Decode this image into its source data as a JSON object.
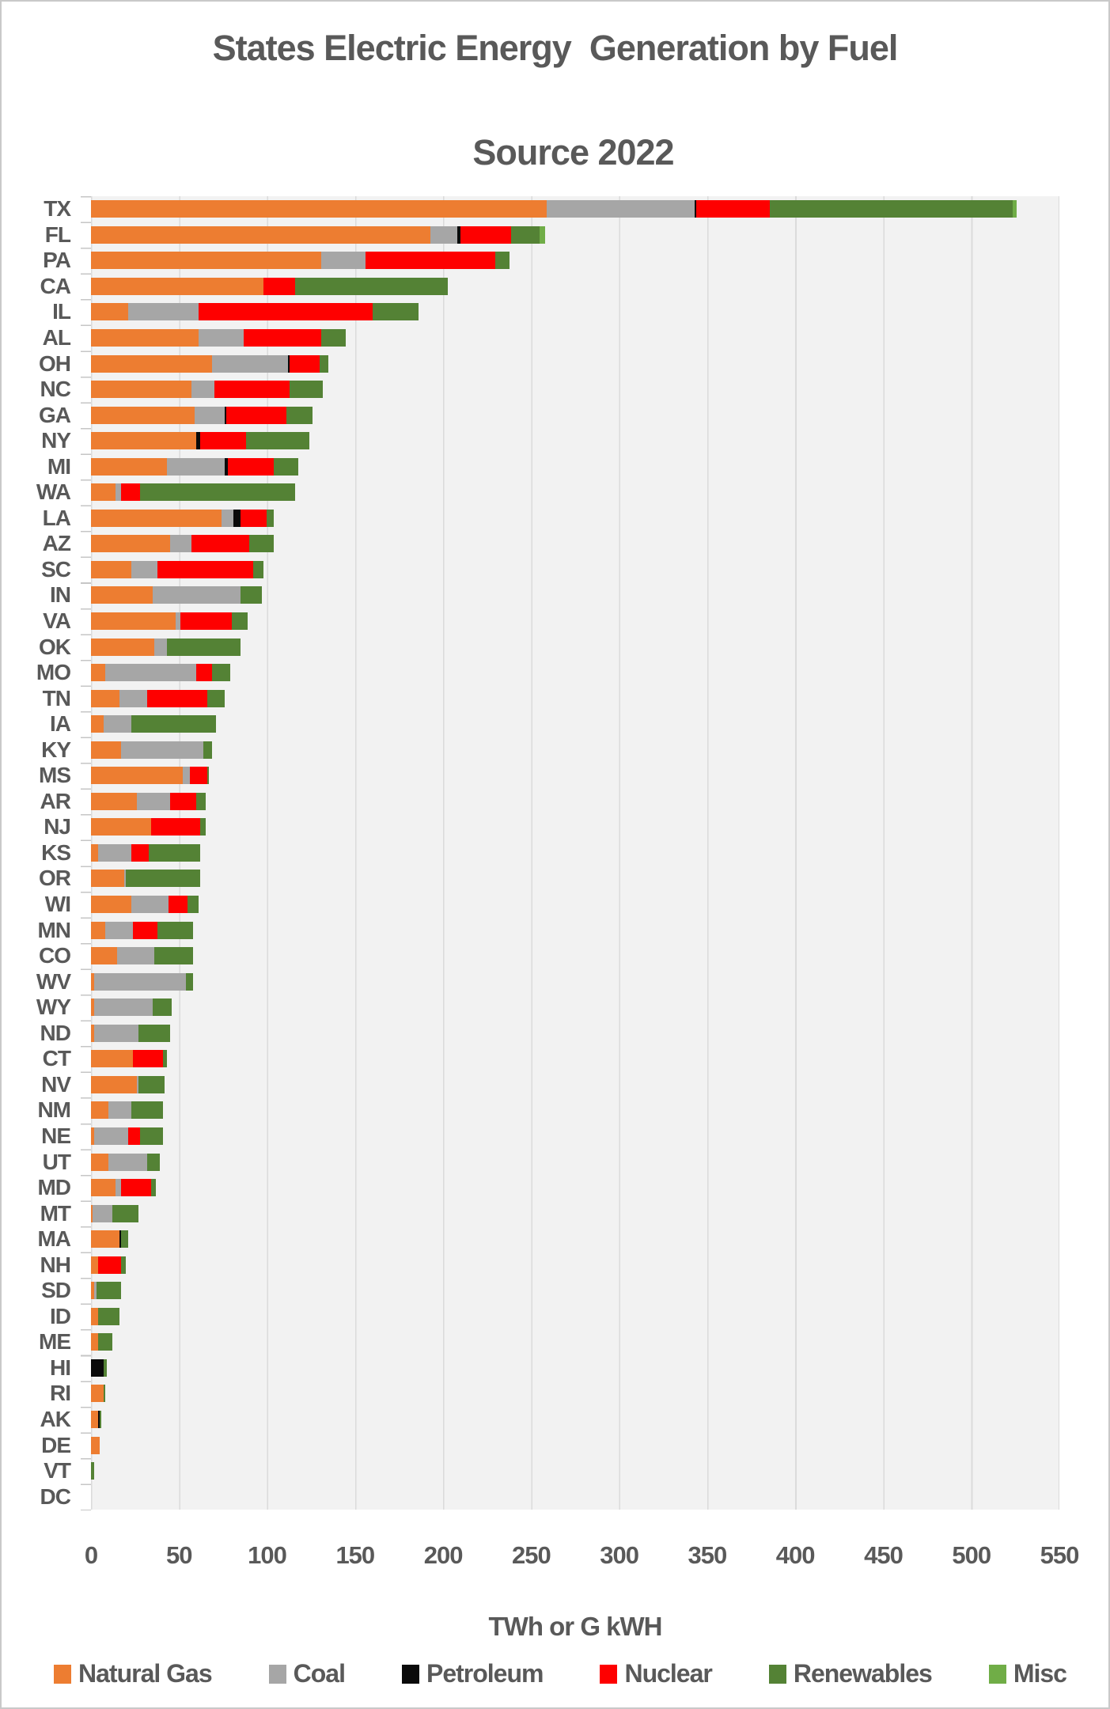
{
  "title": {
    "line1": "States Electric Energy  Generation by Fuel",
    "line2": "Source 2022"
  },
  "colors": {
    "text": "#595959",
    "plot_background": "#f2f2f2",
    "gridline": "#dbdbdb",
    "frame_border": "#c9c9c9"
  },
  "chart_data": {
    "type": "bar",
    "orientation": "horizontal",
    "stacked": true,
    "title": "States Electric Energy  Generation by Fuel Source 2022",
    "xlabel": "TWh or G kWH",
    "ylabel": "",
    "xlim": [
      0,
      550
    ],
    "grid": true,
    "legend_position": "bottom",
    "x_ticks": [
      0,
      50,
      100,
      150,
      200,
      250,
      300,
      350,
      400,
      450,
      500,
      550
    ],
    "series": [
      {
        "name": "Natural Gas",
        "color": "#ED7D31"
      },
      {
        "name": "Coal",
        "color": "#A6A6A6"
      },
      {
        "name": "Petroleum",
        "color": "#0a0a0a"
      },
      {
        "name": "Nuclear",
        "color": "#FE0000"
      },
      {
        "name": "Renewables",
        "color": "#548235"
      },
      {
        "name": "Misc",
        "color": "#70AD47"
      }
    ],
    "value_order": [
      "Natural Gas",
      "Coal",
      "Petroleum",
      "Nuclear",
      "Renewables",
      "Misc"
    ],
    "states": [
      {
        "state": "TX",
        "values": [
          259,
          84,
          1,
          42,
          138,
          2
        ]
      },
      {
        "state": "FL",
        "values": [
          193,
          15,
          2,
          29,
          16,
          3
        ]
      },
      {
        "state": "PA",
        "values": [
          131,
          25,
          0,
          74,
          8,
          0
        ]
      },
      {
        "state": "CA",
        "values": [
          98,
          0,
          0,
          18,
          87,
          0
        ]
      },
      {
        "state": "IL",
        "values": [
          21,
          40,
          0,
          99,
          26,
          0
        ]
      },
      {
        "state": "AL",
        "values": [
          61,
          26,
          0,
          44,
          14,
          0
        ]
      },
      {
        "state": "OH",
        "values": [
          69,
          43,
          1,
          17,
          5,
          0
        ]
      },
      {
        "state": "NC",
        "values": [
          57,
          13,
          0,
          43,
          19,
          0
        ]
      },
      {
        "state": "GA",
        "values": [
          59,
          17,
          1,
          34,
          15,
          0
        ]
      },
      {
        "state": "NY",
        "values": [
          60,
          0,
          2,
          26,
          36,
          0
        ]
      },
      {
        "state": "MI",
        "values": [
          43,
          33,
          2,
          26,
          14,
          0
        ]
      },
      {
        "state": "WA",
        "values": [
          14,
          3,
          0,
          11,
          88,
          0
        ]
      },
      {
        "state": "LA",
        "values": [
          74,
          7,
          4,
          15,
          4,
          0
        ]
      },
      {
        "state": "AZ",
        "values": [
          45,
          12,
          0,
          33,
          14,
          0
        ]
      },
      {
        "state": "SC",
        "values": [
          23,
          15,
          0,
          54,
          6,
          0
        ]
      },
      {
        "state": "IN",
        "values": [
          35,
          50,
          0,
          0,
          12,
          0
        ]
      },
      {
        "state": "VA",
        "values": [
          48,
          3,
          0,
          29,
          9,
          0
        ]
      },
      {
        "state": "OK",
        "values": [
          36,
          7,
          0,
          0,
          42,
          0
        ]
      },
      {
        "state": "MO",
        "values": [
          8,
          52,
          0,
          9,
          10,
          0
        ]
      },
      {
        "state": "TN",
        "values": [
          16,
          16,
          0,
          34,
          10,
          0
        ]
      },
      {
        "state": "IA",
        "values": [
          7,
          16,
          0,
          0,
          48,
          0
        ]
      },
      {
        "state": "KY",
        "values": [
          17,
          47,
          0,
          0,
          5,
          0
        ]
      },
      {
        "state": "MS",
        "values": [
          52,
          4,
          0,
          10,
          1,
          0
        ]
      },
      {
        "state": "AR",
        "values": [
          26,
          19,
          0,
          15,
          5,
          0
        ]
      },
      {
        "state": "NJ",
        "values": [
          34,
          0,
          0,
          28,
          3,
          0
        ]
      },
      {
        "state": "KS",
        "values": [
          4,
          19,
          0,
          10,
          29,
          0
        ]
      },
      {
        "state": "OR",
        "values": [
          19,
          1,
          0,
          0,
          42,
          0
        ]
      },
      {
        "state": "WI",
        "values": [
          23,
          21,
          0,
          11,
          6,
          0
        ]
      },
      {
        "state": "MN",
        "values": [
          8,
          16,
          0,
          14,
          20,
          0
        ]
      },
      {
        "state": "CO",
        "values": [
          15,
          21,
          0,
          0,
          22,
          0
        ]
      },
      {
        "state": "WV",
        "values": [
          2,
          52,
          0,
          0,
          4,
          0
        ]
      },
      {
        "state": "WY",
        "values": [
          2,
          33,
          0,
          0,
          11,
          0
        ]
      },
      {
        "state": "ND",
        "values": [
          2,
          25,
          0,
          0,
          18,
          0
        ]
      },
      {
        "state": "CT",
        "values": [
          24,
          0,
          0,
          17,
          2,
          0
        ]
      },
      {
        "state": "NV",
        "values": [
          26,
          1,
          0,
          0,
          15,
          0
        ]
      },
      {
        "state": "NM",
        "values": [
          10,
          13,
          0,
          0,
          18,
          0
        ]
      },
      {
        "state": "NE",
        "values": [
          2,
          19,
          0,
          7,
          13,
          0
        ]
      },
      {
        "state": "UT",
        "values": [
          10,
          22,
          0,
          0,
          7,
          0
        ]
      },
      {
        "state": "MD",
        "values": [
          14,
          3,
          0,
          17,
          3,
          0
        ]
      },
      {
        "state": "MT",
        "values": [
          1,
          11,
          0,
          0,
          15,
          0
        ]
      },
      {
        "state": "MA",
        "values": [
          16,
          0,
          1,
          0,
          4,
          0
        ]
      },
      {
        "state": "NH",
        "values": [
          4,
          0,
          0,
          13,
          3,
          0
        ]
      },
      {
        "state": "SD",
        "values": [
          2,
          1,
          0,
          0,
          14,
          0
        ]
      },
      {
        "state": "ID",
        "values": [
          4,
          0,
          0,
          0,
          12,
          0
        ]
      },
      {
        "state": "ME",
        "values": [
          4,
          0,
          0,
          0,
          8,
          0
        ]
      },
      {
        "state": "HI",
        "values": [
          0,
          0,
          7,
          0,
          2,
          0
        ]
      },
      {
        "state": "RI",
        "values": [
          7,
          0,
          0,
          0,
          1,
          0
        ]
      },
      {
        "state": "AK",
        "values": [
          4,
          0,
          1,
          0,
          1,
          0
        ]
      },
      {
        "state": "DE",
        "values": [
          5,
          0,
          0,
          0,
          0,
          0
        ]
      },
      {
        "state": "VT",
        "values": [
          0,
          0,
          0,
          0,
          2,
          0
        ]
      },
      {
        "state": "DC",
        "values": [
          0,
          0,
          0,
          0,
          0,
          0
        ]
      }
    ]
  }
}
